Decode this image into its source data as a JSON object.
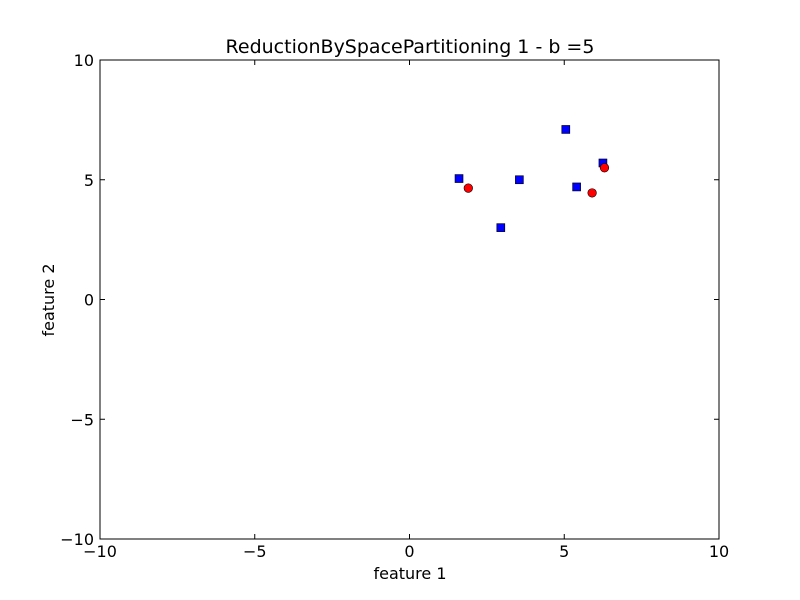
{
  "chart_data": {
    "type": "scatter",
    "title": "ReductionBySpacePartitioning 1 - b =5",
    "xlabel": "feature 1",
    "ylabel": "feature 2",
    "xlim": [
      -10,
      10
    ],
    "ylim": [
      -10,
      10
    ],
    "xticks": [
      -10,
      -5,
      0,
      5,
      10
    ],
    "xtick_labels": [
      "−10",
      "−5",
      "0",
      "5",
      "10"
    ],
    "yticks": [
      -10,
      -5,
      0,
      5,
      10
    ],
    "ytick_labels": [
      "−10",
      "−5",
      "0",
      "5",
      "10"
    ],
    "grid": false,
    "legend": false,
    "series": [
      {
        "marker": "square",
        "color": "#0000ff",
        "points": [
          {
            "x": 1.6,
            "y": 5.05
          },
          {
            "x": 2.95,
            "y": 3.0
          },
          {
            "x": 3.55,
            "y": 5.0
          },
          {
            "x": 5.05,
            "y": 7.1
          },
          {
            "x": 5.4,
            "y": 4.7
          },
          {
            "x": 6.25,
            "y": 5.7
          }
        ]
      },
      {
        "marker": "circle",
        "color": "#ff0000",
        "points": [
          {
            "x": 1.9,
            "y": 4.65
          },
          {
            "x": 5.9,
            "y": 4.45
          },
          {
            "x": 6.3,
            "y": 5.5
          }
        ]
      }
    ]
  }
}
